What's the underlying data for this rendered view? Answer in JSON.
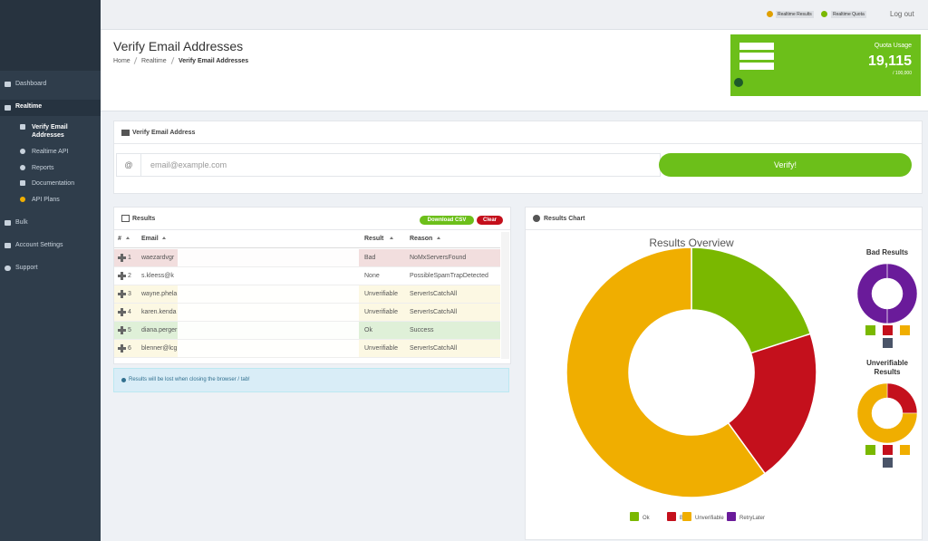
{
  "topbar": {
    "links": [
      "Realtime Results",
      "Realtime Quota",
      "Log out"
    ]
  },
  "sidebar": {
    "items": [
      {
        "label": "Dashboard"
      },
      {
        "label": "Realtime",
        "children": [
          "Verify Email Addresses",
          "Realtime API",
          "Reports",
          "Documentation",
          "API Plans"
        ]
      },
      {
        "label": "Bulk"
      },
      {
        "label": "Account Settings"
      },
      {
        "label": "Support"
      }
    ]
  },
  "header": {
    "title": "Verify Email Addresses",
    "breadcrumbs": [
      "Home",
      "Realtime",
      "Verify Email Addresses"
    ]
  },
  "quota": {
    "title": "Quota Usage",
    "used": "19,115",
    "total": "/ 100,000"
  },
  "verify": {
    "title": "Verify Email Address",
    "addon": "@",
    "placeholder": "email@example.com",
    "button": "Verify!"
  },
  "results": {
    "title": "Results",
    "buttons": [
      "Download CSV",
      "Clear"
    ],
    "columns": [
      "#",
      "Email",
      "Result",
      "Reason"
    ],
    "rows": [
      {
        "number": "1",
        "email": "waezardvgr",
        "result": "Bad",
        "reason": "NoMxServersFound",
        "color": "#f2dede"
      },
      {
        "number": "2",
        "email": "s.kleess@k",
        "result": "None",
        "reason": "PossibleSpamTrapDetected",
        "color": "#ffffff"
      },
      {
        "number": "3",
        "email": "wayne.phela",
        "result": "Unverifiable",
        "reason": "ServerIsCatchAll",
        "color": "#fcf8e3"
      },
      {
        "number": "4",
        "email": "karen.kenda",
        "result": "Unverifiable",
        "reason": "ServerIsCatchAll",
        "color": "#fcf8e3"
      },
      {
        "number": "5",
        "email": "diana.perger",
        "result": "Ok",
        "reason": "Success",
        "color": "#dff0d8"
      },
      {
        "number": "6",
        "email": "blenner@lcg",
        "result": "Unverifiable",
        "reason": "ServerIsCatchAll",
        "color": "#fcf8e3"
      }
    ],
    "note": "Results will be lost when closing the browser / tab!"
  },
  "chart_panel": {
    "title": "Results Chart"
  },
  "chart_data": [
    {
      "type": "donut",
      "title": "Results Overview",
      "categories": [
        "Ok",
        "Bad",
        "Unverifiable",
        "RetryLater"
      ],
      "values": [
        1,
        1,
        3,
        0
      ],
      "colors": [
        "#7ab800",
        "#c4101c",
        "#f0ae00",
        "#6a1b9a"
      ]
    },
    {
      "type": "donut",
      "title": "Bad Results",
      "values": [
        1
      ],
      "colors": [
        "#6a1b9a"
      ]
    },
    {
      "type": "donut",
      "title": "Unverifiable Results",
      "values": [
        1,
        3
      ],
      "colors": [
        "#c4101c",
        "#f0ae00"
      ]
    }
  ]
}
